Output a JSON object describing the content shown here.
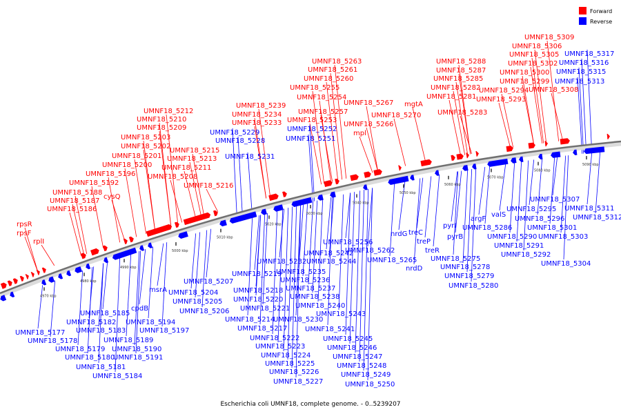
{
  "legend": [
    {
      "label": "Forward",
      "color": "#ff0000"
    },
    {
      "label": "Reverse",
      "color": "#0000ff"
    }
  ],
  "colors": {
    "forward": "#ff0000",
    "reverse": "#0000ff",
    "backbone": "#777777"
  },
  "caption": "Escherichia coli UMNF18, complete genome. - 0..5239207",
  "ticks": [
    "4970 kbp",
    "4980 kbp",
    "4990 kbp",
    "5000 kbp",
    "5010 kbp",
    "5020 kbp",
    "5030 kbp",
    "5040 kbp",
    "5050 kbp",
    "5060 kbp",
    "5070 kbp",
    "5080 kbp",
    "5090 kbp"
  ],
  "forward_labels": [
    "rpsR",
    "rpsF",
    "rplI",
    "UMNF18_5186",
    "UMNF18_5187",
    "UMNF18_5188",
    "UMNF18_5192",
    "cysQ",
    "UMNF18_5196",
    "UMNF18_5200",
    "UMNF18_5201",
    "UMNF18_5202",
    "UMNF18_5203",
    "UMNF18_5209",
    "UMNF18_5210",
    "UMNF18_5212",
    "UMNF18_5215",
    "UMNF18_5213",
    "UMNF18_5211",
    "UMNF18_5208",
    "UMNF18_5216",
    "UMNF18_5233",
    "UMNF18_5234",
    "UMNF18_5239",
    "UMNF18_5253",
    "UMNF18_5257",
    "UMNF18_5254",
    "UMNF18_5255",
    "UMNF18_5260",
    "UMNF18_5261",
    "UMNF18_5263",
    "mpl",
    "UMNF18_5266",
    "UMNF18_5267",
    "UMNF18_5270",
    "mgtA",
    "UMNF18_5283",
    "UMNF18_5281",
    "UMNF18_5282",
    "UMNF18_5285",
    "UMNF18_5287",
    "UMNF18_5288",
    "UMNF18_5293",
    "UMNF18_5294",
    "UMNF18_5299",
    "UMNF18_5300",
    "UMNF18_5302",
    "UMNF18_5305",
    "UMNF18_5306",
    "UMNF18_5308",
    "UMNF18_5309"
  ],
  "reverse_labels": [
    "UMNF18_5177",
    "UMNF18_5178",
    "UMNF18_5179",
    "UMNF18_5180",
    "UMNF18_5181",
    "UMNF18_5182",
    "UMNF18_5183",
    "UMNF18_5184",
    "UMNF18_5185",
    "UMNF18_5189",
    "UMNF18_5190",
    "UMNF18_5191",
    "UMNF18_5194",
    "UMNF18_5197",
    "cpdB",
    "msrA",
    "UMNF18_5204",
    "UMNF18_5205",
    "UMNF18_5206",
    "UMNF18_5207",
    "UMNF18_5214",
    "UMNF18_5217",
    "UMNF18_5218",
    "UMNF18_5219",
    "UMNF18_5220",
    "UMNF18_5221",
    "UMNF18_5222",
    "UMNF18_5223",
    "UMNF18_5224",
    "UMNF18_5225",
    "UMNF18_5226",
    "UMNF18_5227",
    "UMNF18_5228",
    "UMNF18_5229",
    "UMNF18_5230",
    "UMNF18_5231",
    "UMNF18_5232",
    "UMNF18_5235",
    "UMNF18_5236",
    "UMNF18_5237",
    "UMNF18_5238",
    "UMNF18_5240",
    "UMNF18_5241",
    "UMNF18_5242",
    "UMNF18_5243",
    "UMNF18_5244",
    "UMNF18_5245",
    "UMNF18_5246",
    "UMNF18_5247",
    "UMNF18_5248",
    "UMNF18_5249",
    "UMNF18_5250",
    "UMNF18_5251",
    "UMNF18_5252",
    "UMNF18_5256",
    "UMNF18_5262",
    "UMNF18_5265",
    "nrdG",
    "nrdD",
    "treC",
    "treP",
    "treR",
    "pyrI",
    "pyrB",
    "UMNF18_5275",
    "UMNF18_5278",
    "UMNF18_5279",
    "UMNF18_5280",
    "argF",
    "UMNF18_5286",
    "valS",
    "UMNF18_5290",
    "UMNF18_5291",
    "UMNF18_5292",
    "UMNF18_5295",
    "UMNF18_5296",
    "UMNF18_5301",
    "UMNF18_5303",
    "UMNF18_5304",
    "UMNF18_5307",
    "UMNF18_5311",
    "UMNF18_5312",
    "UMNF18_5313",
    "UMNF18_5315",
    "UMNF18_5316",
    "UMNF18_5317"
  ]
}
